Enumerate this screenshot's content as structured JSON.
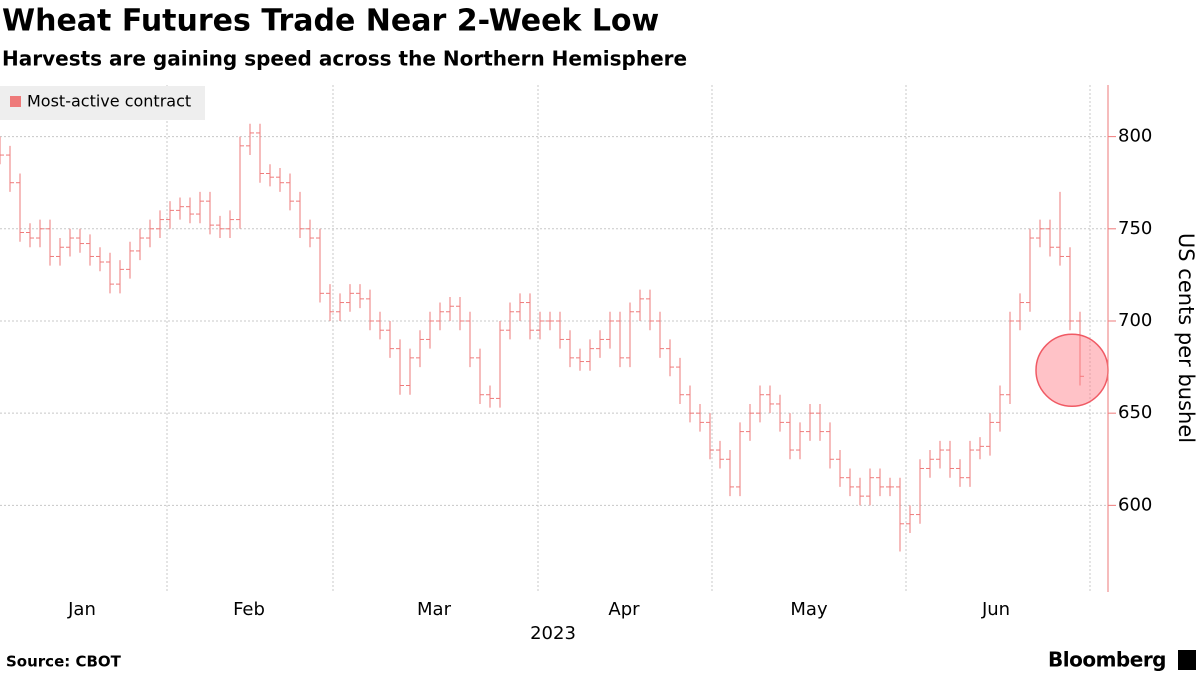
{
  "chart_data": {
    "type": "ohlc",
    "title": "Wheat Futures Trade Near 2-Week Low",
    "subtitle": "Harvests are gaining speed across the Northern Hemisphere",
    "y_label": "US cents per bushel",
    "x_label": "2023",
    "source": "Source: CBOT",
    "brand": "Bloomberg",
    "series": [
      {
        "name": "Most-active contract",
        "color": "#ee7a7a",
        "open": [
          795,
          790,
          775,
          748,
          745,
          750,
          735,
          740,
          745,
          742,
          735,
          732,
          720,
          728,
          738,
          745,
          750,
          755,
          760,
          762,
          758,
          765,
          752,
          750,
          755,
          795,
          802,
          780,
          778,
          775,
          765,
          750,
          745,
          715,
          705,
          710,
          715,
          712,
          700,
          695,
          685,
          665,
          680,
          690,
          700,
          705,
          708,
          700,
          680,
          660,
          658,
          695,
          705,
          710,
          695,
          700,
          700,
          690,
          680,
          678,
          685,
          690,
          700,
          680,
          705,
          712,
          700,
          685,
          675,
          660,
          650,
          645,
          630,
          625,
          610,
          640,
          650,
          660,
          655,
          645,
          630,
          640,
          650,
          640,
          625,
          615,
          610,
          605,
          615,
          610,
          610,
          590,
          595,
          620,
          625,
          630,
          620,
          615,
          630,
          632,
          645,
          660,
          700,
          710,
          745,
          750,
          740,
          735,
          700
        ],
        "high": [
          800,
          795,
          780,
          753,
          755,
          755,
          745,
          750,
          750,
          747,
          740,
          737,
          733,
          743,
          750,
          755,
          760,
          765,
          767,
          767,
          770,
          770,
          757,
          760,
          800,
          807,
          807,
          785,
          783,
          780,
          770,
          755,
          750,
          720,
          715,
          720,
          720,
          717,
          705,
          700,
          690,
          685,
          695,
          705,
          710,
          713,
          713,
          705,
          685,
          665,
          700,
          710,
          715,
          715,
          705,
          705,
          705,
          695,
          685,
          690,
          695,
          705,
          705,
          710,
          717,
          717,
          705,
          690,
          680,
          665,
          655,
          650,
          635,
          630,
          645,
          655,
          665,
          665,
          660,
          650,
          645,
          655,
          655,
          645,
          630,
          620,
          615,
          620,
          620,
          615,
          615,
          600,
          625,
          630,
          635,
          635,
          625,
          635,
          637,
          650,
          665,
          705,
          715,
          750,
          755,
          755,
          770,
          740,
          705
        ],
        "low": [
          785,
          770,
          743,
          740,
          740,
          730,
          730,
          735,
          737,
          730,
          727,
          715,
          715,
          723,
          733,
          740,
          745,
          750,
          755,
          753,
          753,
          747,
          745,
          745,
          750,
          790,
          775,
          773,
          770,
          760,
          745,
          740,
          710,
          700,
          700,
          705,
          707,
          695,
          690,
          680,
          660,
          660,
          675,
          685,
          695,
          700,
          695,
          675,
          655,
          653,
          653,
          690,
          700,
          690,
          690,
          695,
          685,
          675,
          673,
          673,
          680,
          685,
          675,
          675,
          700,
          695,
          680,
          670,
          655,
          645,
          640,
          625,
          620,
          605,
          605,
          635,
          645,
          650,
          640,
          625,
          625,
          635,
          635,
          620,
          610,
          605,
          600,
          600,
          605,
          605,
          575,
          585,
          590,
          615,
          620,
          615,
          610,
          610,
          625,
          627,
          640,
          655,
          695,
          705,
          740,
          735,
          730,
          695,
          665
        ],
        "close": [
          790,
          775,
          748,
          745,
          750,
          735,
          740,
          745,
          742,
          735,
          732,
          720,
          728,
          738,
          745,
          750,
          755,
          760,
          762,
          758,
          765,
          752,
          750,
          755,
          795,
          802,
          780,
          778,
          775,
          765,
          750,
          745,
          715,
          705,
          710,
          715,
          712,
          700,
          695,
          685,
          665,
          680,
          690,
          700,
          705,
          708,
          700,
          680,
          660,
          658,
          695,
          705,
          710,
          695,
          700,
          700,
          690,
          680,
          678,
          685,
          690,
          700,
          680,
          705,
          712,
          700,
          685,
          675,
          660,
          650,
          645,
          630,
          625,
          610,
          640,
          650,
          660,
          655,
          645,
          630,
          640,
          650,
          640,
          625,
          615,
          610,
          605,
          615,
          610,
          610,
          590,
          595,
          620,
          625,
          630,
          620,
          615,
          630,
          632,
          645,
          660,
          700,
          710,
          745,
          750,
          740,
          735,
          700,
          670
        ]
      }
    ],
    "xlim": [
      0,
      110.8
    ],
    "xticks": [
      {
        "value": 8.2,
        "label": "Jan"
      },
      {
        "value": 24.9,
        "label": "Feb"
      },
      {
        "value": 43.4,
        "label": "Mar"
      },
      {
        "value": 62.4,
        "label": "Apr"
      },
      {
        "value": 80.9,
        "label": "May"
      },
      {
        "value": 99.6,
        "label": "Jun"
      }
    ],
    "xgrid": [
      16.7,
      33.3,
      53.8,
      71.2,
      90.6,
      109
    ],
    "ylim": [
      553,
      828
    ],
    "yticks": [
      600,
      650,
      700,
      750,
      800
    ],
    "grid": true,
    "legend": "top-left"
  }
}
